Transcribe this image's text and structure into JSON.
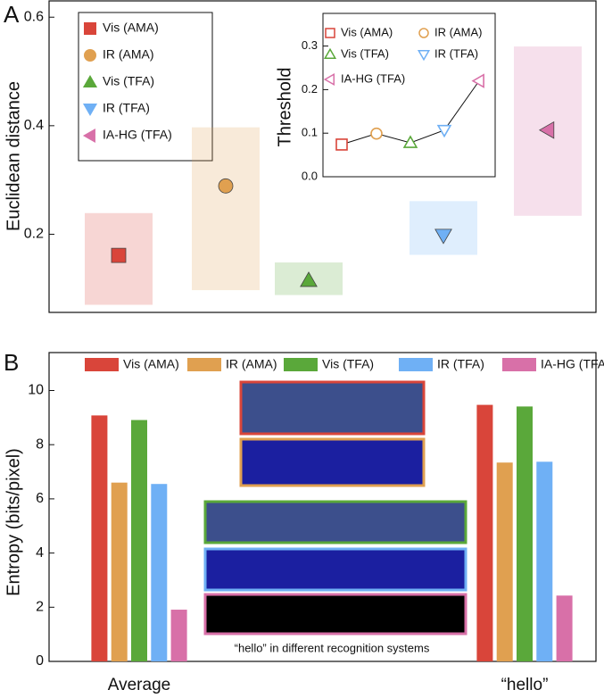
{
  "chart_data": [
    {
      "type": "scatter",
      "panel": "A",
      "ylabel": "Euclidean distance",
      "categories": [
        null,
        null,
        null,
        null,
        null
      ],
      "legend": [
        "Vis (AMA)",
        "IR (AMA)",
        "Vis (TFA)",
        "IR (TFA)",
        "IA-HG (TFA)"
      ],
      "colors": [
        "#d9453a",
        "#e0a050",
        "#5aa83a",
        "#6fb0f5",
        "#d870a8"
      ],
      "markers": [
        "square",
        "circle",
        "triangle-up",
        "triangle-down",
        "triangle-left"
      ],
      "values": [
        0.161,
        0.289,
        0.115,
        0.198,
        0.392
      ],
      "ranges": [
        [
          0.07,
          0.239
        ],
        [
          0.097,
          0.397
        ],
        [
          0.088,
          0.148
        ],
        [
          0.162,
          0.261
        ],
        [
          0.234,
          0.546
        ]
      ],
      "ylim": [
        0.056,
        0.63
      ],
      "yticks": [
        0.2,
        0.4,
        0.6
      ]
    },
    {
      "type": "line",
      "ylabel": "Threshold",
      "categories": [
        null,
        null,
        null,
        null,
        null
      ],
      "legend": [
        "Vis (AMA)",
        "IR (AMA)",
        "Vis (TFA)",
        "IR (TFA)",
        "IA-HG (TFA)"
      ],
      "colors": [
        "#d9453a",
        "#e0a050",
        "#5aa83a",
        "#6fb0f5",
        "#d870a8"
      ],
      "markers": [
        "square",
        "circle",
        "triangle-up",
        "triangle-down",
        "triangle-left"
      ],
      "values": [
        0.074,
        0.099,
        0.078,
        0.107,
        0.22
      ],
      "ylim": [
        0,
        0.375
      ],
      "yticks": [
        {
          "value": 0,
          "label": "0.0"
        },
        0.1,
        0.2,
        0.3
      ]
    },
    {
      "type": "bar",
      "panel": "B",
      "ylabel": "Entropy (bits/pixel)",
      "annotation": "“hello” in different recognition systems",
      "categories": [
        "Average",
        "“hello”"
      ],
      "series": [
        {
          "name": "Vis (AMA)",
          "color": "#d9453a",
          "values": [
            9.08,
            9.47
          ]
        },
        {
          "name": "IR (AMA)",
          "color": "#e0a050",
          "values": [
            6.6,
            7.34
          ]
        },
        {
          "name": "Vis (TFA)",
          "color": "#5aa83a",
          "values": [
            8.91,
            9.41
          ]
        },
        {
          "name": "IR (TFA)",
          "color": "#6fb0f5",
          "values": [
            6.55,
            7.37
          ]
        },
        {
          "name": "IA-HG (TFA)",
          "color": "#d870a8",
          "values": [
            1.91,
            2.43
          ]
        }
      ],
      "ylim": [
        0,
        11.4
      ],
      "yticks": [
        0,
        2,
        4,
        6,
        8,
        10
      ]
    }
  ]
}
